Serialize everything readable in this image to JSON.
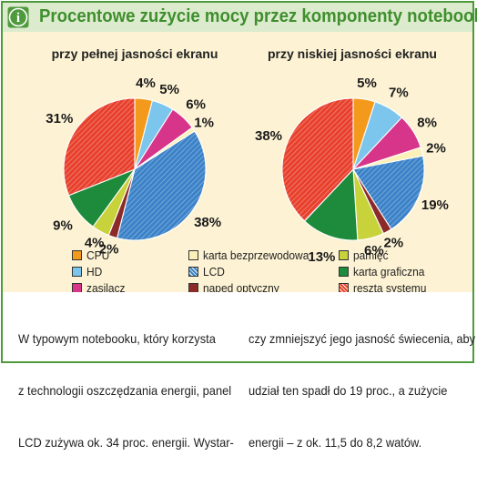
{
  "header": {
    "title": "Procentowe zużycie mocy przez komponenty notebooka",
    "icon": "info-icon",
    "icon_letter": "i",
    "colors": {
      "title": "#3f8f2e",
      "band": "#dcebcd",
      "border": "#4f9a3c",
      "panel": "#fdf3d4"
    }
  },
  "chart_data": [
    {
      "type": "pie",
      "title": "przy pełnej jasności ekranu",
      "slices": [
        {
          "category": "CPU",
          "value": 4,
          "label": "4%"
        },
        {
          "category": "HD",
          "value": 5,
          "label": "5%"
        },
        {
          "category": "zasilacz",
          "value": 6,
          "label": "6%"
        },
        {
          "category": "karta bezprzewodowa",
          "value": 1,
          "label": "1%"
        },
        {
          "category": "LCD",
          "value": 38,
          "label": "38%"
        },
        {
          "category": "napęd optyczny",
          "value": 2,
          "label": "2%"
        },
        {
          "category": "pamięć",
          "value": 4,
          "label": "4%"
        },
        {
          "category": "karta graficzna",
          "value": 9,
          "label": "9%"
        },
        {
          "category": "reszta systemu",
          "value": 31,
          "label": "31%"
        }
      ]
    },
    {
      "type": "pie",
      "title": "przy niskiej jasności ekranu",
      "slices": [
        {
          "category": "CPU",
          "value": 5,
          "label": "5%"
        },
        {
          "category": "HD",
          "value": 7,
          "label": "7%"
        },
        {
          "category": "zasilacz",
          "value": 8,
          "label": "8%"
        },
        {
          "category": "karta bezprzewodowa",
          "value": 2,
          "label": "2%"
        },
        {
          "category": "LCD",
          "value": 19,
          "label": "19%"
        },
        {
          "category": "napęd optyczny",
          "value": 2,
          "label": "2%"
        },
        {
          "category": "pamięć",
          "value": 6,
          "label": "6%"
        },
        {
          "category": "karta graficzna",
          "value": 13,
          "label": "13%"
        },
        {
          "category": "reszta systemu",
          "value": 38,
          "label": "38%"
        }
      ]
    }
  ],
  "legend": {
    "placement": "bottom",
    "items": [
      {
        "label": "CPU",
        "color": "#f39a1d",
        "pattern": "solid"
      },
      {
        "label": "karta bezprzewodowa",
        "color": "#fbf1b8",
        "pattern": "solid"
      },
      {
        "label": "pamięć",
        "color": "#c8d23a",
        "pattern": "solid"
      },
      {
        "label": "HD",
        "color": "#7cc5ec",
        "pattern": "solid"
      },
      {
        "label": "LCD",
        "color": "#3b82c8",
        "pattern": "hatch"
      },
      {
        "label": "karta graficzna",
        "color": "#1e8a3c",
        "pattern": "solid"
      },
      {
        "label": "zasilacz",
        "color": "#d6358a",
        "pattern": "solid"
      },
      {
        "label": "napęd optyczny",
        "color": "#8c2a2a",
        "pattern": "solid"
      },
      {
        "label": "reszta systemu",
        "color": "#e8402c",
        "pattern": "hatch"
      }
    ]
  },
  "caption": {
    "left_lines": [
      "W typowym notebooku, który korzysta",
      "z technologii oszczędzania energii, panel",
      "LCD zużywa ok. 34 proc. energii. Wystar-"
    ],
    "right_lines": [
      "czy zmniejszyć jego jasność świecenia, aby",
      "udział ten spadł do 19 proc., a zużycie",
      "energii – z ok. 11,5 do 8,2 watów."
    ]
  }
}
